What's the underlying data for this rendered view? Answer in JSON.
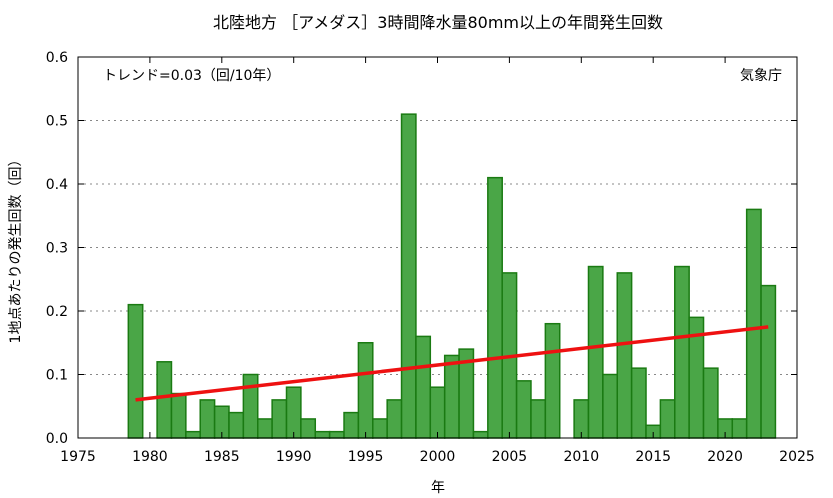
{
  "chart_data": {
    "type": "bar",
    "title": "北陸地方 ［アメダス］3時間降水量80mm以上の年間発生回数",
    "xlabel": "年",
    "ylabel": "1地点あたりの発生回数（回）",
    "trend_label": "トレンド=0.03（回/10年）",
    "source_label": "気象庁",
    "xlim": [
      1975,
      2025
    ],
    "ylim": [
      0,
      0.6
    ],
    "xticks": [
      1975,
      1980,
      1985,
      1990,
      1995,
      2000,
      2005,
      2010,
      2015,
      2020,
      2025
    ],
    "yticks": [
      0.0,
      0.1,
      0.2,
      0.3,
      0.4,
      0.5,
      0.6
    ],
    "grid": "horizontal-dashed",
    "colors": {
      "bar_fill": "#4aa647",
      "bar_edge": "#1a7a12",
      "trend": "#ee1111"
    },
    "x": [
      1979,
      1980,
      1981,
      1982,
      1983,
      1984,
      1985,
      1986,
      1987,
      1988,
      1989,
      1990,
      1991,
      1992,
      1993,
      1994,
      1995,
      1996,
      1997,
      1998,
      1999,
      2000,
      2001,
      2002,
      2003,
      2004,
      2005,
      2006,
      2007,
      2008,
      2009,
      2010,
      2011,
      2012,
      2013,
      2014,
      2015,
      2016,
      2017,
      2018,
      2019,
      2020,
      2021,
      2022,
      2023
    ],
    "values": [
      0.21,
      0.0,
      0.12,
      0.07,
      0.01,
      0.06,
      0.05,
      0.04,
      0.1,
      0.03,
      0.06,
      0.08,
      0.03,
      0.01,
      0.01,
      0.04,
      0.15,
      0.03,
      0.06,
      0.51,
      0.16,
      0.08,
      0.13,
      0.14,
      0.01,
      0.41,
      0.26,
      0.09,
      0.06,
      0.18,
      0.0,
      0.06,
      0.27,
      0.1,
      0.26,
      0.11,
      0.02,
      0.06,
      0.27,
      0.19,
      0.11,
      0.03,
      0.03,
      0.36,
      0.24
    ],
    "trend": {
      "x": [
        1979,
        2023
      ],
      "y": [
        0.06,
        0.175
      ]
    }
  }
}
